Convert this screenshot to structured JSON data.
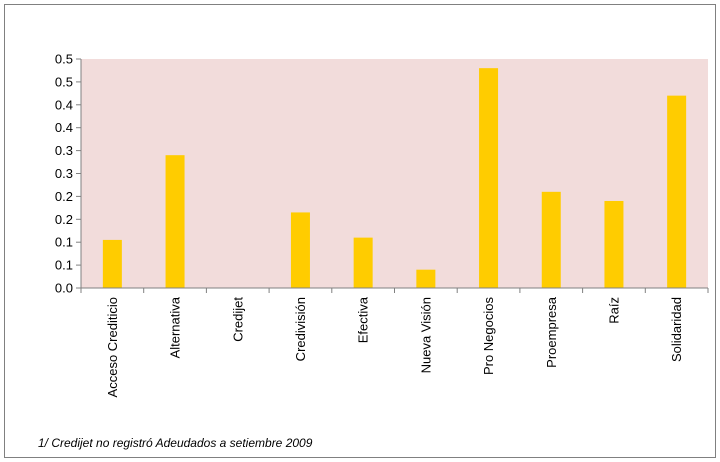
{
  "chart_data": {
    "type": "bar",
    "categories": [
      "Acceso Crediticio",
      "Alternativa",
      "Credijet",
      "Credivisión",
      "Efectiva",
      "Nueva Visión",
      "Pro Negocios",
      "Proempresa",
      "Raíz",
      "Solidaridad"
    ],
    "values": [
      0.105,
      0.29,
      0.0,
      0.165,
      0.11,
      0.04,
      0.48,
      0.21,
      0.19,
      0.42
    ],
    "y_ticks": [
      "0.0",
      "0.1",
      "0.1",
      "0.2",
      "0.2",
      "0.3",
      "0.3",
      "0.4",
      "0.4",
      "0.5",
      "0.5"
    ],
    "ylim": [
      0,
      0.5
    ],
    "grid": false,
    "legend": "none",
    "colors": {
      "bar": "#FFCC00",
      "plot_background": "#F2DCDB",
      "axis": "#808080",
      "border": "#808080"
    }
  },
  "footnote": "1/ Credijet no registró Adeudados a setiembre 2009"
}
